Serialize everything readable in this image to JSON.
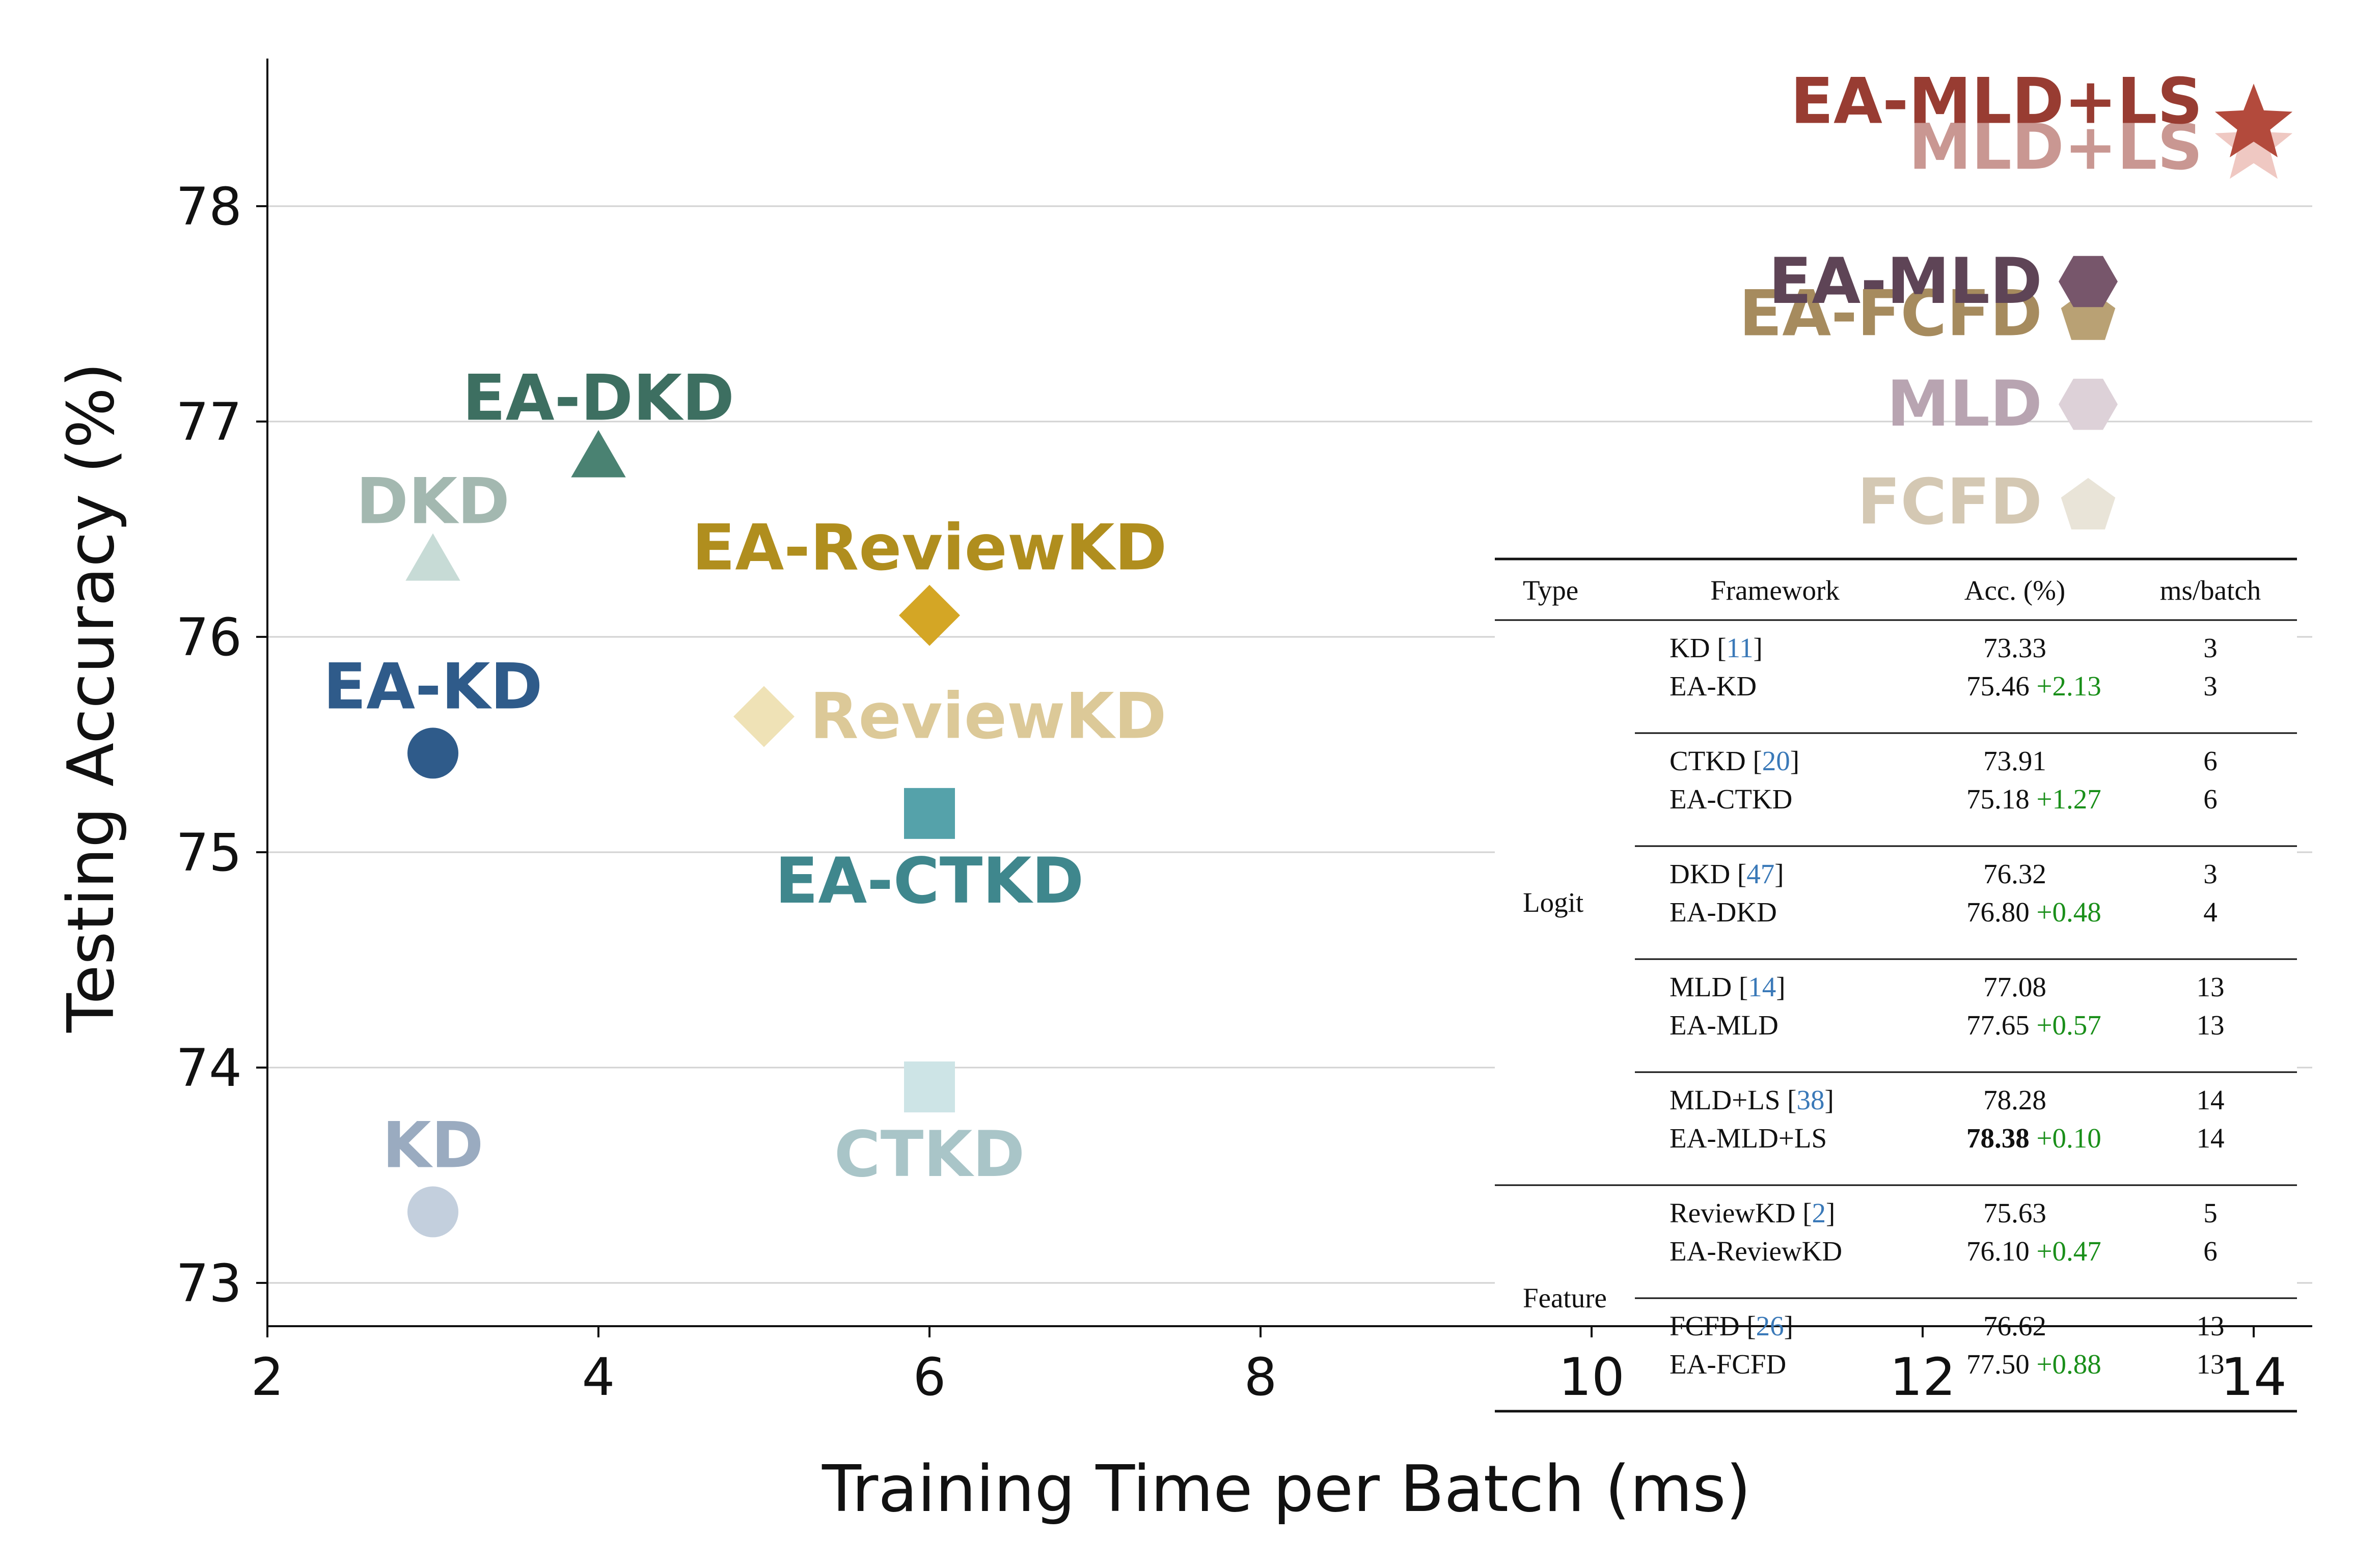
{
  "chart_data": {
    "type": "scatter",
    "title": "",
    "xlabel": "Training Time per Batch (ms)",
    "ylabel": "Testing Accuracy (%)",
    "xlim": [
      2,
      14.3
    ],
    "ylim": [
      72.8,
      78.7
    ],
    "x_ticks": [
      2,
      4,
      6,
      8,
      10,
      12,
      14
    ],
    "y_ticks": [
      73,
      74,
      75,
      76,
      77,
      78
    ],
    "grid": "horizontal",
    "points": [
      {
        "name": "KD",
        "x": 3,
        "y": 73.33,
        "marker": "circle",
        "color": "#c3cfdd",
        "label_color": "#9aabc0",
        "label_pos": "above"
      },
      {
        "name": "EA-KD",
        "x": 3,
        "y": 75.46,
        "marker": "circle",
        "color": "#2f5b8a",
        "label_color": "#2f5b8a",
        "label_pos": "above"
      },
      {
        "name": "DKD",
        "x": 3,
        "y": 76.32,
        "marker": "triangle",
        "color": "#c7dbd6",
        "label_color": "#a3b8b0",
        "label_pos": "above"
      },
      {
        "name": "EA-DKD",
        "x": 4,
        "y": 76.8,
        "marker": "triangle",
        "color": "#4a8272",
        "label_color": "#3d6f61",
        "label_pos": "above"
      },
      {
        "name": "CTKD",
        "x": 6,
        "y": 73.91,
        "marker": "square",
        "color": "#cde4e6",
        "label_color": "#a9c5c8",
        "label_pos": "below"
      },
      {
        "name": "EA-CTKD",
        "x": 6,
        "y": 75.18,
        "marker": "square",
        "color": "#55a2aa",
        "label_color": "#3f878d",
        "label_pos": "below"
      },
      {
        "name": "ReviewKD",
        "x": 5,
        "y": 75.63,
        "marker": "diamond",
        "color": "#efe2b6",
        "label_color": "#dcc998",
        "label_pos": "right"
      },
      {
        "name": "EA-ReviewKD",
        "x": 6,
        "y": 76.1,
        "marker": "diamond",
        "color": "#d4a625",
        "label_color": "#b08e1e",
        "label_pos": "above"
      },
      {
        "name": "FCFD",
        "x": 13,
        "y": 76.62,
        "marker": "pentagon",
        "color": "#e9e4d8",
        "label_color": "#d4c8b3",
        "label_pos": "left"
      },
      {
        "name": "EA-FCFD",
        "x": 13,
        "y": 77.5,
        "marker": "pentagon",
        "color": "#b9a174",
        "label_color": "#a68b5e",
        "label_pos": "left"
      },
      {
        "name": "MLD",
        "x": 13,
        "y": 77.08,
        "marker": "hexagon",
        "color": "#ddd1d8",
        "label_color": "#b8a4b1",
        "label_pos": "left"
      },
      {
        "name": "EA-MLD",
        "x": 13,
        "y": 77.65,
        "marker": "hexagon",
        "color": "#77566b",
        "label_color": "#5e4456",
        "label_pos": "left"
      },
      {
        "name": "MLD+LS",
        "x": 14,
        "y": 78.28,
        "marker": "star",
        "color": "#efc8c2",
        "label_color": "#c99792",
        "label_pos": "left"
      },
      {
        "name": "EA-MLD+LS",
        "x": 14,
        "y": 78.38,
        "marker": "star",
        "color": "#b34a3c",
        "label_color": "#983c32",
        "label_pos": "left"
      }
    ]
  },
  "table": {
    "headers": [
      "Type",
      "Framework",
      "Acc. (%)",
      "ms/batch"
    ],
    "groups": [
      {
        "type": "Logit",
        "blocks": [
          {
            "rows": [
              {
                "framework": "KD",
                "ref": "11",
                "acc": "73.33",
                "gain": "",
                "ms": "3",
                "bold": false
              },
              {
                "framework": "EA-KD",
                "ref": "",
                "acc": "75.46",
                "gain": "+2.13",
                "ms": "3",
                "bold": false
              }
            ]
          },
          {
            "rows": [
              {
                "framework": "CTKD",
                "ref": "20",
                "acc": "73.91",
                "gain": "",
                "ms": "6",
                "bold": false
              },
              {
                "framework": "EA-CTKD",
                "ref": "",
                "acc": "75.18",
                "gain": "+1.27",
                "ms": "6",
                "bold": false
              }
            ]
          },
          {
            "rows": [
              {
                "framework": "DKD",
                "ref": "47",
                "acc": "76.32",
                "gain": "",
                "ms": "3",
                "bold": false
              },
              {
                "framework": "EA-DKD",
                "ref": "",
                "acc": "76.80",
                "gain": "+0.48",
                "ms": "4",
                "bold": false
              }
            ]
          },
          {
            "rows": [
              {
                "framework": "MLD",
                "ref": "14",
                "acc": "77.08",
                "gain": "",
                "ms": "13",
                "bold": false
              },
              {
                "framework": "EA-MLD",
                "ref": "",
                "acc": "77.65",
                "gain": "+0.57",
                "ms": "13",
                "bold": false
              }
            ]
          },
          {
            "rows": [
              {
                "framework": "MLD+LS",
                "ref": "38",
                "acc": "78.28",
                "gain": "",
                "ms": "14",
                "bold": false
              },
              {
                "framework": "EA-MLD+LS",
                "ref": "",
                "acc": "78.38",
                "gain": "+0.10",
                "ms": "14",
                "bold": true
              }
            ]
          }
        ]
      },
      {
        "type": "Feature",
        "blocks": [
          {
            "rows": [
              {
                "framework": "ReviewKD",
                "ref": "2",
                "acc": "75.63",
                "gain": "",
                "ms": "5",
                "bold": false
              },
              {
                "framework": "EA-ReviewKD",
                "ref": "",
                "acc": "76.10",
                "gain": "+0.47",
                "ms": "6",
                "bold": false
              }
            ]
          },
          {
            "rows": [
              {
                "framework": "FCFD",
                "ref": "26",
                "acc": "76.62",
                "gain": "",
                "ms": "13",
                "bold": false
              },
              {
                "framework": "EA-FCFD",
                "ref": "",
                "acc": "77.50",
                "gain": "+0.88",
                "ms": "13",
                "bold": false
              }
            ]
          }
        ]
      }
    ]
  }
}
